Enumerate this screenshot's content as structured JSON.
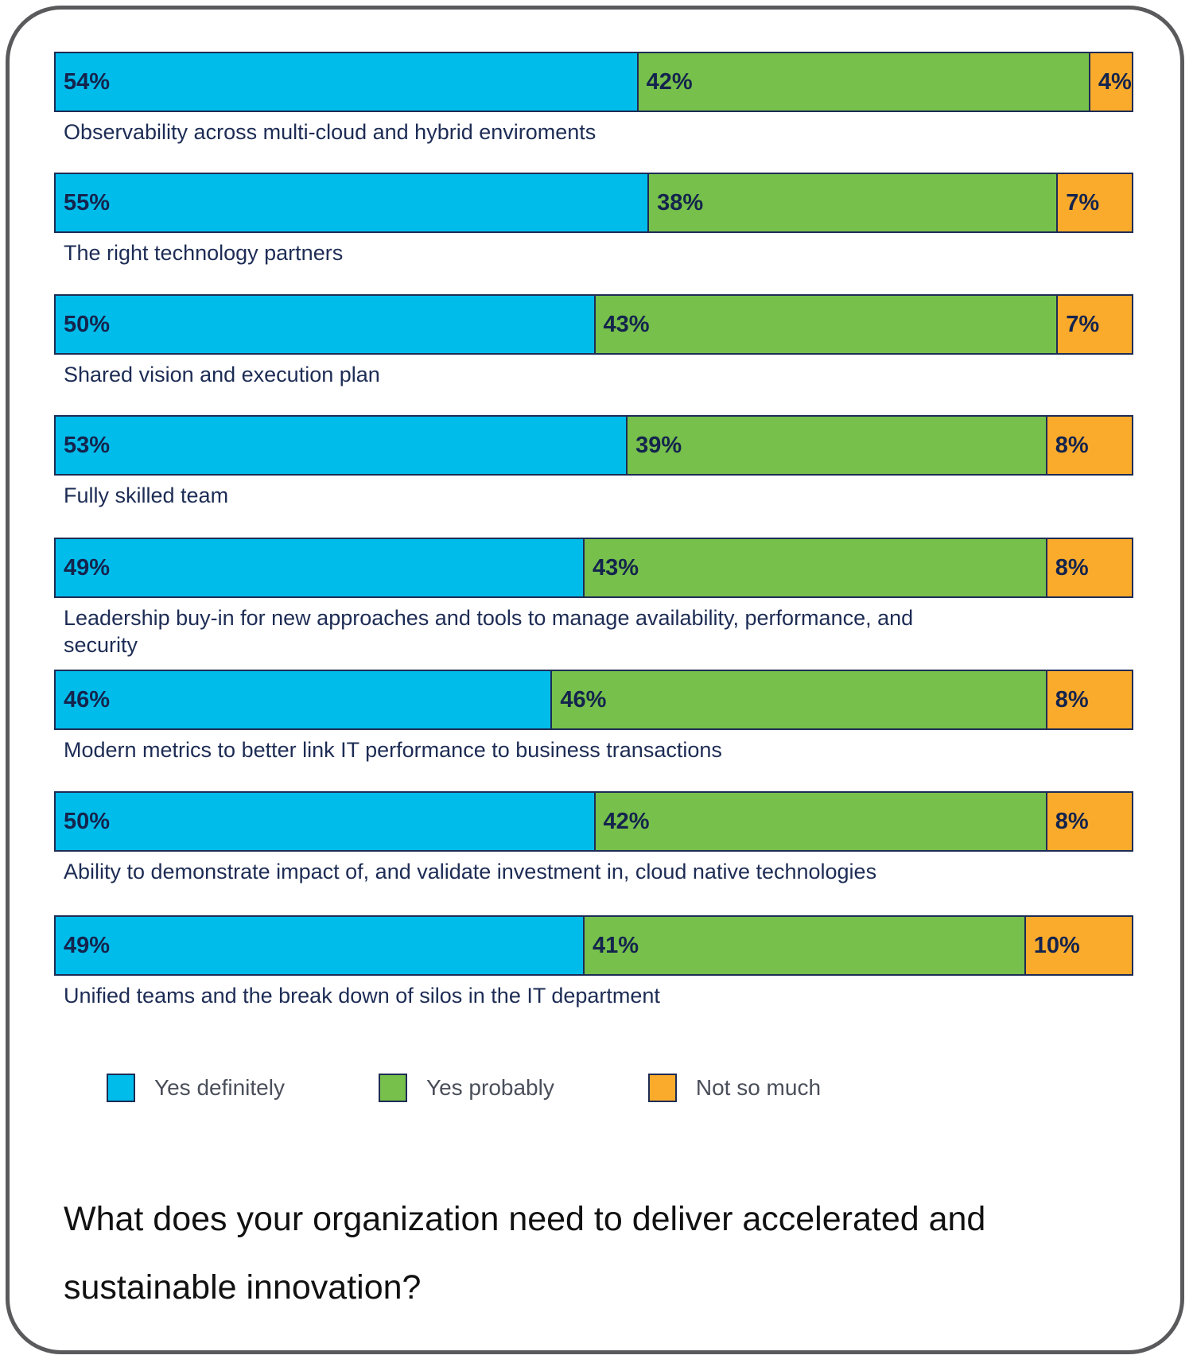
{
  "chart_data": {
    "type": "bar",
    "orientation": "horizontal",
    "stacked": true,
    "title": "What does your organization need to deliver accelerated and sustainable innovation?",
    "categories": [
      "Observability across multi-cloud and hybrid enviroments",
      "The right technology partners",
      "Shared vision and execution plan",
      "Fully skilled team",
      "Leadership buy-in for new approaches and tools to manage availability, performance, and security",
      "Modern metrics to better link IT performance to business transactions",
      "Ability to demonstrate impact of, and validate investment in, cloud native technologies",
      "Unified teams and the break down of silos in the IT department"
    ],
    "series": [
      {
        "name": "Yes definitely",
        "color": "#00bceb",
        "values": [
          54,
          55,
          50,
          53,
          49,
          46,
          50,
          49
        ]
      },
      {
        "name": "Yes probably",
        "color": "#76c04b",
        "values": [
          42,
          38,
          43,
          39,
          43,
          46,
          42,
          41
        ]
      },
      {
        "name": "Not so much",
        "color": "#fbab2c",
        "values": [
          4,
          7,
          7,
          8,
          8,
          8,
          8,
          10
        ]
      }
    ],
    "value_suffix": "%",
    "xlim": [
      0,
      100
    ],
    "grid": false,
    "legend_placement": "bottom"
  }
}
